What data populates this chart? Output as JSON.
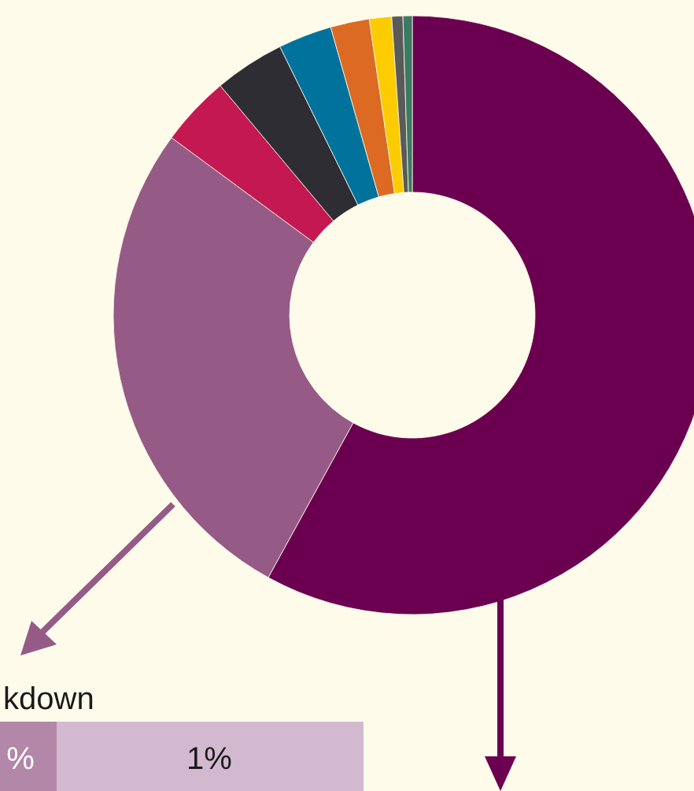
{
  "chart_data": {
    "type": "donut",
    "categories": [
      null,
      null,
      null,
      null,
      null,
      null,
      null,
      null,
      null
    ],
    "values": [
      58.0,
      27.1,
      3.8,
      3.8,
      2.9,
      2.1,
      1.2,
      0.6,
      0.5
    ],
    "colors": [
      "#6b0050",
      "#955b86",
      "#c41852",
      "#2e2d33",
      "#00729c",
      "#dc6a23",
      "#fccb00",
      "#5a5a5a",
      "#3c7a62"
    ],
    "annotations": [
      "kdown",
      "%",
      "1%"
    ]
  }
}
